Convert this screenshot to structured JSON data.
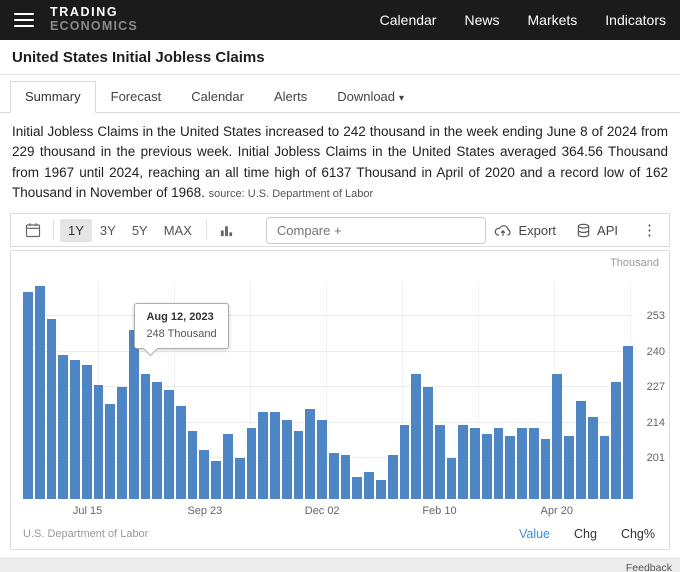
{
  "header": {
    "logo_line1": "TRADING",
    "logo_line2": "ECONOMICS",
    "nav": [
      "Calendar",
      "News",
      "Markets",
      "Indicators"
    ]
  },
  "page": {
    "title": "United States Initial Jobless Claims",
    "tabs": [
      "Summary",
      "Forecast",
      "Calendar",
      "Alerts",
      "Download"
    ],
    "active_tab": "Summary",
    "download_caret": "▾",
    "description": "Initial Jobless Claims in the United States increased to 242 thousand in the week ending June 8 of 2024 from 229 thousand in the previous week. Initial Jobless Claims in the United States averaged 364.56 Thousand from 1967 until 2024, reaching an all time high of 6137 Thousand in April of 2020 and a record low of 162 Thousand in November of 1968.",
    "source_note": "source: U.S. Department of Labor"
  },
  "toolbar": {
    "ranges": [
      "1Y",
      "3Y",
      "5Y",
      "MAX"
    ],
    "active_range": "1Y",
    "compare_placeholder": "Compare +",
    "export_label": "Export",
    "api_label": "API",
    "kebab": "⋮"
  },
  "chart_data": {
    "type": "bar",
    "title": "United States Initial Jobless Claims",
    "unit_label": "Thousand",
    "bar_color": "#4e86c5",
    "ylim": [
      186,
      266
    ],
    "y_ticks": [
      201,
      214,
      227,
      240,
      253
    ],
    "x_tick_labels": [
      {
        "label": "Jul 15",
        "index": 5
      },
      {
        "label": "Sep 23",
        "index": 15
      },
      {
        "label": "Dec 02",
        "index": 25
      },
      {
        "label": "Feb 10",
        "index": 35
      },
      {
        "label": "Apr 20",
        "index": 45
      }
    ],
    "values": [
      262,
      264,
      252,
      239,
      237,
      235,
      228,
      221,
      227,
      248,
      232,
      229,
      226,
      220,
      211,
      204,
      200,
      210,
      201,
      212,
      218,
      218,
      215,
      211,
      219,
      215,
      203,
      202,
      194,
      196,
      193,
      202,
      213,
      232,
      227,
      213,
      201,
      213,
      212,
      210,
      212,
      209,
      212,
      212,
      208,
      232,
      209,
      222,
      216,
      209,
      229,
      242
    ],
    "tooltip": {
      "date": "Aug 12, 2023",
      "value_label": "248 Thousand",
      "index": 9
    }
  },
  "chart_footer": {
    "source": "U.S. Department of Labor",
    "modes": [
      {
        "label": "Value",
        "active": true
      },
      {
        "label": "Chg",
        "active": false
      },
      {
        "label": "Chg%",
        "active": false
      }
    ]
  },
  "footer": {
    "feedback": "Feedback"
  }
}
